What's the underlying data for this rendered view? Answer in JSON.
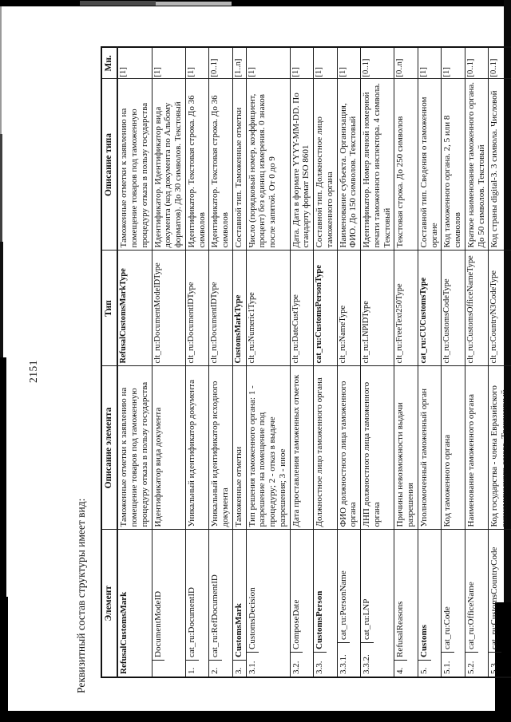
{
  "page": {
    "number": "2151",
    "intro": "Реквизитный состав структуры имеет вид:"
  },
  "colors": {
    "ink": "#1c1c1c",
    "scan_edge": "#000000"
  },
  "table": {
    "headers": {
      "element": "Элемент",
      "element_desc": "Описание элемента",
      "type": "Тип",
      "type_desc": "Описание типа",
      "mult": "Мн."
    },
    "rows": [
      {
        "num": null,
        "level": -1,
        "name": "RefusalCustomsMark",
        "name_bold": true,
        "desc": "Таможенные отметки к заявлению на помещение товаров под таможенную процедуру отказа в пользу государства",
        "type": "RefusalCustomsMarkType",
        "type_bold": true,
        "type_desc": "Таможенные отметки к заявлению на помещение товаров под таможенную процедуру отказа в пользу государства",
        "mult": "[1]"
      },
      {
        "num": "",
        "level": 0,
        "name": "DocumentModeID",
        "name_bold": false,
        "desc": "Идентификатор вида документа",
        "type": "clt_ru:DocumentModeIDType",
        "type_bold": false,
        "type_desc": "Идентификатор. Идентификатор вида документа (код документа по Альбому форматов). До 30 символов. Текстовый",
        "mult": "[1]"
      },
      {
        "num": "1.",
        "level": 0,
        "name": "cat_ru:DocumentID",
        "name_bold": false,
        "desc": "Уникальный идентификатор документа",
        "type": "clt_ru:DocumentIDType",
        "type_bold": false,
        "type_desc": "Идентификатор. Текстовая строка. До 36 символов",
        "mult": "[1]"
      },
      {
        "num": "2.",
        "level": 0,
        "name": "cat_ru:RefDocumentID",
        "name_bold": false,
        "desc": "Уникальный идентификатор исходного документа",
        "type": "clt_ru:DocumentIDType",
        "type_bold": false,
        "type_desc": "Идентификатор. Текстовая строка. До 36 символов",
        "mult": "[0..1]"
      },
      {
        "num": "3.",
        "level": 0,
        "name": "CustomsMark",
        "name_bold": true,
        "desc": "Таможенные отметки",
        "type": "CustomsMarkType",
        "type_bold": true,
        "type_desc": "Составной тип. Таможенные отметки",
        "mult": "[1..n]"
      },
      {
        "num": "3.1.",
        "level": 1,
        "name": "CustomsDecision",
        "name_bold": false,
        "desc": "Тип решения таможенного органа: 1 - разрешение на помещение под процедуру; 2 - отказ в выдаче разрешения; 3 - иное",
        "type": "clt_ru:Numeric1Type",
        "type_bold": false,
        "type_desc": "Число (порядковый номер, коэффициент, процент) без единиц измерения. 0 знаков после запятой. От 0 до 9",
        "mult": "[1]"
      },
      {
        "num": "3.2.",
        "level": 1,
        "name": "ComposeDate",
        "name_bold": false,
        "desc": "Дата проставления таможенных отметок",
        "type": "clt_ru:DateCustType",
        "type_bold": false,
        "type_desc": "Дата. Дата в формате YYYY-MM-DD. По стандарту формат ISO 8601",
        "mult": "[1]"
      },
      {
        "num": "3.3.",
        "level": 1,
        "name": "CustomsPerson",
        "name_bold": true,
        "desc": "Должностное лицо таможенного органа",
        "type": "cat_ru:CustomsPersonType",
        "type_bold": true,
        "type_desc": "Составной тип. Должностное лицо таможенного органа",
        "mult": "[1]"
      },
      {
        "num": "3.3.1.",
        "level": 2,
        "name": "cat_ru:PersonName",
        "name_bold": false,
        "desc": "ФИО должностного лица таможенного органа",
        "type": "clt_ru:NameType",
        "type_bold": false,
        "type_desc": "Наименование субъекта. Организация, ФИО. До 150 символов. Текстовый",
        "mult": "[1]"
      },
      {
        "num": "3.3.2.",
        "level": 2,
        "name": "cat_ru:LNP",
        "name_bold": false,
        "desc": "ЛНП должностного лица таможенного органа",
        "type": "clt_ru:LNPIDType",
        "type_bold": false,
        "type_desc": "Идентификатор. Номер личной номерной печати таможенного инспектора. 4 символа. Текстовый",
        "mult": "[0..1]"
      },
      {
        "num": "4.",
        "level": 0,
        "name": "RefusalReasons",
        "name_bold": false,
        "desc": "Причины невозможности выдачи разрешения",
        "type": "clt_ru:FreeText250Type",
        "type_bold": false,
        "type_desc": "Текстовая строка. До 250 символов",
        "mult": "[0..n]"
      },
      {
        "num": "5.",
        "level": 0,
        "name": "Customs",
        "name_bold": true,
        "desc": "Уполномоченный таможенный орган",
        "type": "cat_ru:CUCustomsType",
        "type_bold": true,
        "type_desc": "Составной тип. Сведения о таможенном органе",
        "mult": "[1]"
      },
      {
        "num": "5.1.",
        "level": 1,
        "name": "cat_ru:Code",
        "name_bold": false,
        "desc": "Код таможенного органа",
        "type": "clt_ru:CustomsCodeType",
        "type_bold": false,
        "type_desc": "Код таможенного органа. 2, 5 или 8 символов",
        "mult": "[1]"
      },
      {
        "num": "5.2.",
        "level": 1,
        "name": "cat_ru:OfficeName",
        "name_bold": false,
        "desc": "Наименование таможенного органа",
        "type": "clt_ru:CustomsOfficeNameType",
        "type_bold": false,
        "type_desc": "Краткое наименование таможенного органа. До 50 символов. Текстовый",
        "mult": "[0..1]"
      },
      {
        "num": "5.3.",
        "level": 1,
        "name": "cat_ru:CustomsCountryCode",
        "name_bold": false,
        "desc": "Код государства - члена Евразийского экономического союза. Трехзначный цифровой код",
        "type": "clt_ru:CountryN3CodeType",
        "type_bold": false,
        "type_desc": "Код страны digital-3. 3 символа. Числовой",
        "mult": "[0..1]"
      }
    ]
  }
}
